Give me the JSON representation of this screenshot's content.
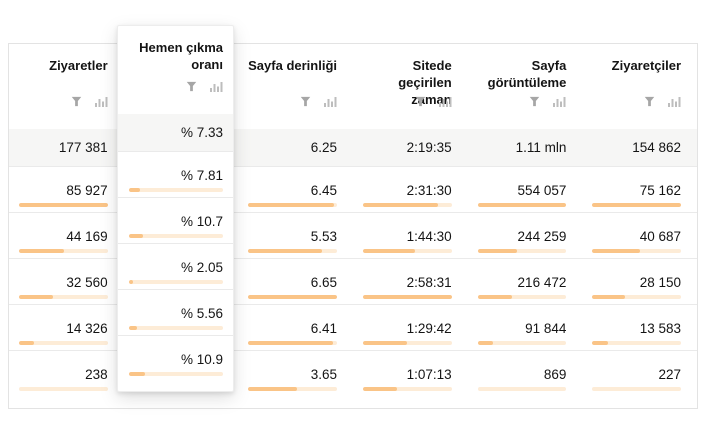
{
  "colors": {
    "bar_fill": "#fac487",
    "bar_track": "#fdecd7",
    "totals_row_bg": "#f6f6f5",
    "table_border": "#e3e3e3",
    "row_separator": "#eaeaea",
    "icon_gray": "#a6a6a6",
    "text": "#141414"
  },
  "icons": {
    "filter": "filter-icon",
    "chart": "bar-chart-icon"
  },
  "columns": {
    "visits": {
      "label": "Ziyaretler"
    },
    "bounce": {
      "label": "Hemen çıkma oranı"
    },
    "depth": {
      "label": "Sayfa derinliği"
    },
    "time": {
      "label": "Sitede geçirilen zaman"
    },
    "views": {
      "label": "Sayfa görüntüleme"
    },
    "visitors": {
      "label": "Ziyaretçiler"
    }
  },
  "totals": {
    "visits": "177 381",
    "bounce": "% 7.33",
    "depth": "6.25",
    "time": "2:19:35",
    "views": "1.11 mln",
    "visitors": "154 862"
  },
  "rows": [
    {
      "visits": {
        "v": "85 927",
        "p": 100
      },
      "bounce": {
        "v": "% 7.81",
        "p": 12
      },
      "depth": {
        "v": "6.45",
        "p": 97
      },
      "time": {
        "v": "2:31:30",
        "p": 85
      },
      "views": {
        "v": "554 057",
        "p": 100
      },
      "visitors": {
        "v": "75 162",
        "p": 100
      }
    },
    {
      "visits": {
        "v": "44 169",
        "p": 51
      },
      "bounce": {
        "v": "% 10.7",
        "p": 15
      },
      "depth": {
        "v": "5.53",
        "p": 83
      },
      "time": {
        "v": "1:44:30",
        "p": 59
      },
      "views": {
        "v": "244 259",
        "p": 44
      },
      "visitors": {
        "v": "40 687",
        "p": 54
      }
    },
    {
      "visits": {
        "v": "32 560",
        "p": 38
      },
      "bounce": {
        "v": "% 2.05",
        "p": 4
      },
      "depth": {
        "v": "6.65",
        "p": 100
      },
      "time": {
        "v": "2:58:31",
        "p": 100
      },
      "views": {
        "v": "216 472",
        "p": 39
      },
      "visitors": {
        "v": "28 150",
        "p": 37
      }
    },
    {
      "visits": {
        "v": "14 326",
        "p": 17
      },
      "bounce": {
        "v": "% 5.56",
        "p": 9
      },
      "depth": {
        "v": "6.41",
        "p": 96
      },
      "time": {
        "v": "1:29:42",
        "p": 50
      },
      "views": {
        "v": "91 844",
        "p": 17
      },
      "visitors": {
        "v": "13 583",
        "p": 18
      }
    },
    {
      "visits": {
        "v": "238",
        "p": 0
      },
      "bounce": {
        "v": "% 10.9",
        "p": 17
      },
      "depth": {
        "v": "3.65",
        "p": 55
      },
      "time": {
        "v": "1:07:13",
        "p": 38
      },
      "views": {
        "v": "869",
        "p": 0
      },
      "visitors": {
        "v": "227",
        "p": 0
      }
    }
  ]
}
